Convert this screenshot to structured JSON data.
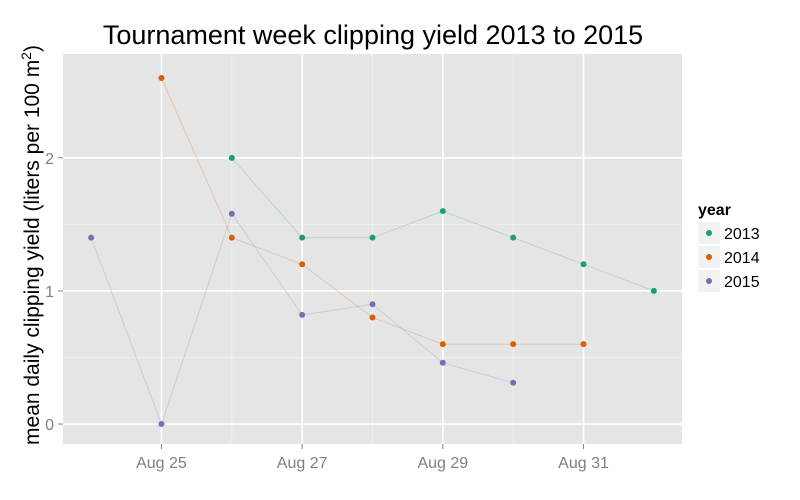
{
  "chart_data": {
    "type": "line",
    "title": "Tournament week clipping yield 2013 to 2015",
    "xlabel": "",
    "ylabel": "mean daily clipping yield (liters per 100 m",
    "ylabel_sup": "2",
    "ylabel_close": ")",
    "x_tick_labels": [
      "Aug 25",
      "Aug 27",
      "Aug 29",
      "Aug 31"
    ],
    "x_tick_days": [
      25,
      27,
      29,
      31
    ],
    "xlim": [
      23.6,
      32.4
    ],
    "y_ticks": [
      0,
      1,
      2
    ],
    "y_tick_labels": [
      "0",
      "1",
      "2"
    ],
    "ylim": [
      -0.15,
      2.78
    ],
    "grid": true,
    "legend_title": "year",
    "legend_position": "right",
    "series": [
      {
        "name": "2013",
        "color": "#1b9e77",
        "x": [
          "Aug 26",
          "Aug 27",
          "Aug 28",
          "Aug 29",
          "Aug 30",
          "Aug 31",
          "Sep 1"
        ],
        "x_days": [
          26,
          27,
          28,
          29,
          30,
          31,
          32
        ],
        "values": [
          2.0,
          1.4,
          1.4,
          1.6,
          1.4,
          1.2,
          1.0
        ]
      },
      {
        "name": "2014",
        "color": "#d95f02",
        "x": [
          "Aug 25",
          "Aug 26",
          "Aug 27",
          "Aug 28",
          "Aug 29",
          "Aug 30",
          "Aug 31"
        ],
        "x_days": [
          25,
          26,
          27,
          28,
          29,
          30,
          31
        ],
        "values": [
          2.6,
          1.4,
          1.2,
          0.8,
          0.6,
          0.6,
          0.6
        ]
      },
      {
        "name": "2015",
        "color": "#7570b3",
        "x": [
          "Aug 24",
          "Aug 25",
          "Aug 26",
          "Aug 27",
          "Aug 28",
          "Aug 29",
          "Aug 30"
        ],
        "x_days": [
          24,
          25,
          26,
          27,
          28,
          29,
          30
        ],
        "values": [
          1.4,
          0.0,
          1.58,
          0.82,
          0.9,
          0.46,
          0.31
        ]
      }
    ]
  }
}
